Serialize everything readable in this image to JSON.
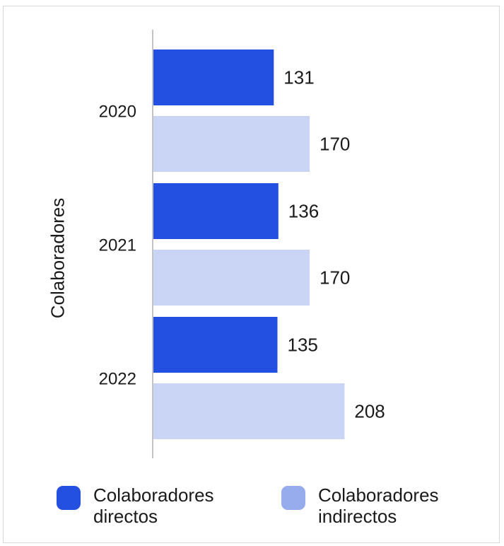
{
  "chart_data": {
    "type": "bar",
    "orientation": "horizontal",
    "title": "",
    "ylabel": "Colaboradores",
    "xlabel": "",
    "categories": [
      "2020",
      "2021",
      "2022"
    ],
    "series": [
      {
        "name": "Colaboradores directos",
        "values": [
          131,
          136,
          135
        ],
        "color": "#2350e0",
        "legend_color": "#2350e0"
      },
      {
        "name": "Colaboradores indirectos",
        "values": [
          170,
          170,
          208
        ],
        "color": "#cad4f4",
        "legend_color": "#96acec"
      }
    ],
    "xlim": [
      0,
      270
    ],
    "grid": false,
    "legend_position": "bottom"
  }
}
